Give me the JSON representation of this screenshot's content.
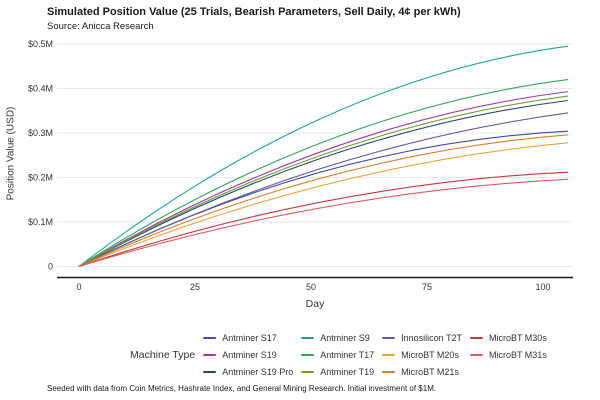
{
  "title": "Simulated Position Value (25 Trials, Bearish Parameters, Sell Daily, 4¢ per kWh)",
  "subtitle": "Source: Anicca Research",
  "caption": "Seeded with data from Coin Metrics, Hashrate Index, and General Mining Research. Initial investment of $1M.",
  "y_axis": {
    "title": "Position Value (USD)",
    "tick_labels": [
      "$0.5M",
      "$0.4M",
      "$0.3M",
      "$0.2M",
      "$0.1M",
      "0"
    ],
    "tick_values": [
      0.5,
      0.4,
      0.3,
      0.2,
      0.1,
      0
    ]
  },
  "x_axis": {
    "title": "Day",
    "tick_labels": [
      "0",
      "25",
      "50",
      "75",
      "100"
    ],
    "tick_values": [
      0,
      25,
      50,
      75,
      100
    ]
  },
  "legend": {
    "title": "Machine Type"
  },
  "chart_data": {
    "type": "line",
    "title": "Simulated Position Value (25 Trials, Bearish Parameters, Sell Daily, 4¢ per kWh)",
    "xlabel": "Day",
    "ylabel": "Position Value (USD)",
    "x": [
      0,
      25,
      50,
      75,
      100
    ],
    "xlim": [
      0,
      100
    ],
    "ylim": [
      0,
      0.5
    ],
    "values_unit": "USD millions",
    "grid": true,
    "legend_position": "bottom",
    "series": [
      {
        "name": "Antminer S17",
        "color": "#3f4d9e",
        "mid": 0.214,
        "end": 0.304,
        "values": [
          0,
          0.12,
          0.21,
          0.27,
          0.3
        ]
      },
      {
        "name": "Antminer S19",
        "color": "#a039a8",
        "mid": 0.26,
        "end": 0.393,
        "values": [
          0,
          0.15,
          0.26,
          0.34,
          0.39
        ]
      },
      {
        "name": "Antminer S19 Pro",
        "color": "#27486f",
        "mid": 0.245,
        "end": 0.373,
        "values": [
          0,
          0.14,
          0.245,
          0.325,
          0.37
        ]
      },
      {
        "name": "Antminer S9",
        "color": "#1fa29b",
        "mid": 0.335,
        "end": 0.495,
        "values": [
          0,
          0.19,
          0.33,
          0.43,
          0.49
        ]
      },
      {
        "name": "Antminer T17",
        "color": "#36a35f",
        "mid": 0.28,
        "end": 0.42,
        "values": [
          0,
          0.16,
          0.28,
          0.36,
          0.42
        ]
      },
      {
        "name": "Antminer T19",
        "color": "#70a02f",
        "mid": 0.252,
        "end": 0.383,
        "values": [
          0,
          0.145,
          0.25,
          0.33,
          0.38
        ]
      },
      {
        "name": "Innosilicon T2T",
        "color": "#5c5fa7",
        "mid": 0.222,
        "end": 0.345,
        "values": [
          0,
          0.13,
          0.225,
          0.3,
          0.34
        ]
      },
      {
        "name": "MicroBT M20s",
        "color": "#e7a63c",
        "mid": 0.183,
        "end": 0.278,
        "values": [
          0,
          0.105,
          0.185,
          0.245,
          0.275
        ]
      },
      {
        "name": "MicroBT M21s",
        "color": "#dd7e2f",
        "mid": 0.2,
        "end": 0.296,
        "values": [
          0,
          0.115,
          0.2,
          0.26,
          0.295
        ]
      },
      {
        "name": "MicroBT M30s",
        "color": "#bf3a44",
        "mid": 0.146,
        "end": 0.212,
        "values": [
          0,
          0.082,
          0.145,
          0.185,
          0.21
        ]
      },
      {
        "name": "MicroBT M31s",
        "color": "#de5b5f",
        "mid": 0.133,
        "end": 0.196,
        "values": [
          0,
          0.075,
          0.133,
          0.172,
          0.195
        ]
      }
    ]
  }
}
